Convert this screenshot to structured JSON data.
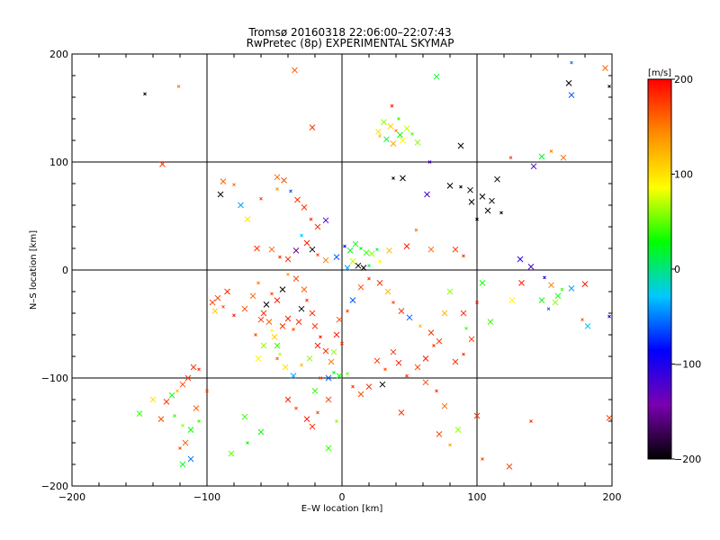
{
  "chart_data": {
    "type": "scatter",
    "title": "Tromsø 20160318 22:06:00–22:07:43",
    "subtitle": "RwPretec (8p) EXPERIMENTAL SKYMAP",
    "xlabel": "E–W location [km]",
    "ylabel": "N–S location [km]",
    "xlim": [
      -200,
      200
    ],
    "ylim": [
      -200,
      200
    ],
    "x_ticks": [
      "−200",
      "−100",
      "0",
      "100",
      "200"
    ],
    "y_ticks": [
      "−200",
      "−100",
      "0",
      "100",
      "200"
    ],
    "grid": "on",
    "marker": "x",
    "colorbar": {
      "label": "[m/s]",
      "range": [
        -200,
        200
      ],
      "ticks": [
        "200",
        "100",
        "0",
        "−100",
        "−200"
      ],
      "colormap": [
        "#000000",
        "#7a00b0",
        "#0000ff",
        "#00c8ff",
        "#00ff00",
        "#ffff00",
        "#ff8c00",
        "#ff0000"
      ]
    },
    "points": [
      [
        -146,
        163,
        -200
      ],
      [
        -133,
        98,
        180
      ],
      [
        -22,
        132,
        180
      ],
      [
        37,
        152,
        190
      ],
      [
        31,
        137,
        60
      ],
      [
        36,
        133,
        110
      ],
      [
        40,
        129,
        150
      ],
      [
        43,
        125,
        30
      ],
      [
        48,
        131,
        70
      ],
      [
        28,
        124,
        120
      ],
      [
        33,
        121,
        20
      ],
      [
        45,
        120,
        90
      ],
      [
        52,
        126,
        40
      ],
      [
        27,
        128,
        100
      ],
      [
        56,
        118,
        60
      ],
      [
        42,
        140,
        40
      ],
      [
        38,
        117,
        130
      ],
      [
        70,
        179,
        20
      ],
      [
        170,
        192,
        -50
      ],
      [
        168,
        173,
        -200
      ],
      [
        170,
        162,
        -60
      ],
      [
        198,
        170,
        -200
      ],
      [
        195,
        187,
        160
      ],
      [
        -35,
        185,
        160
      ],
      [
        -121,
        170,
        150
      ],
      [
        88,
        115,
        -200
      ],
      [
        80,
        78,
        -200
      ],
      [
        88,
        77,
        -200
      ],
      [
        95,
        74,
        -200
      ],
      [
        96,
        63,
        -200
      ],
      [
        100,
        47,
        -200
      ],
      [
        108,
        55,
        -200
      ],
      [
        111,
        64,
        -200
      ],
      [
        118,
        53,
        -200
      ],
      [
        104,
        68,
        -200
      ],
      [
        115,
        84,
        -200
      ],
      [
        65,
        100,
        -120
      ],
      [
        63,
        70,
        -120
      ],
      [
        45,
        85,
        -200
      ],
      [
        38,
        85,
        -200
      ],
      [
        -90,
        70,
        -200
      ],
      [
        -88,
        82,
        160
      ],
      [
        -80,
        79,
        160
      ],
      [
        -48,
        86,
        160
      ],
      [
        -43,
        83,
        170
      ],
      [
        -38,
        73,
        -60
      ],
      [
        -33,
        65,
        180
      ],
      [
        -28,
        58,
        180
      ],
      [
        -23,
        47,
        180
      ],
      [
        -18,
        40,
        180
      ],
      [
        -12,
        46,
        -120
      ],
      [
        -48,
        75,
        140
      ],
      [
        -70,
        47,
        100
      ],
      [
        -75,
        60,
        -40
      ],
      [
        -60,
        66,
        180
      ],
      [
        -63,
        20,
        180
      ],
      [
        -52,
        19,
        160
      ],
      [
        -46,
        12,
        180
      ],
      [
        -40,
        10,
        180
      ],
      [
        -34,
        18,
        -150
      ],
      [
        -30,
        32,
        -30
      ],
      [
        -26,
        25,
        190
      ],
      [
        -22,
        19,
        -200
      ],
      [
        -18,
        14,
        180
      ],
      [
        -12,
        9,
        150
      ],
      [
        -4,
        12,
        -60
      ],
      [
        2,
        22,
        -100
      ],
      [
        6,
        18,
        20
      ],
      [
        10,
        24,
        30
      ],
      [
        14,
        20,
        20
      ],
      [
        18,
        16,
        40
      ],
      [
        22,
        15,
        60
      ],
      [
        26,
        19,
        10
      ],
      [
        12,
        4,
        -200
      ],
      [
        16,
        2,
        -200
      ],
      [
        20,
        4,
        10
      ],
      [
        8,
        8,
        70
      ],
      [
        4,
        2,
        -40
      ],
      [
        28,
        8,
        90
      ],
      [
        35,
        18,
        120
      ],
      [
        48,
        22,
        190
      ],
      [
        55,
        37,
        150
      ],
      [
        66,
        19,
        160
      ],
      [
        84,
        19,
        180
      ],
      [
        90,
        13,
        180
      ],
      [
        140,
        3,
        -120
      ],
      [
        132,
        10,
        -100
      ],
      [
        150,
        -7,
        -90
      ],
      [
        133,
        -12,
        190
      ],
      [
        155,
        -14,
        150
      ],
      [
        163,
        -18,
        40
      ],
      [
        170,
        -17,
        -40
      ],
      [
        180,
        -13,
        190
      ],
      [
        198,
        -43,
        -90
      ],
      [
        160,
        -24,
        30
      ],
      [
        158,
        -30,
        60
      ],
      [
        153,
        -36,
        -60
      ],
      [
        148,
        -28,
        30
      ],
      [
        126,
        -28,
        90
      ],
      [
        178,
        -46,
        170
      ],
      [
        182,
        -52,
        -30
      ],
      [
        198,
        -137,
        170
      ],
      [
        140,
        -140,
        180
      ],
      [
        124,
        -182,
        170
      ],
      [
        148,
        105,
        20
      ],
      [
        155,
        110,
        150
      ],
      [
        164,
        104,
        160
      ],
      [
        142,
        96,
        -120
      ],
      [
        125,
        104,
        180
      ],
      [
        -92,
        -26,
        180
      ],
      [
        -85,
        -20,
        180
      ],
      [
        -88,
        -34,
        170
      ],
      [
        -94,
        -38,
        110
      ],
      [
        -96,
        -30,
        170
      ],
      [
        -80,
        -42,
        190
      ],
      [
        -72,
        -36,
        170
      ],
      [
        -66,
        -24,
        160
      ],
      [
        -62,
        -12,
        150
      ],
      [
        -58,
        -40,
        180
      ],
      [
        -54,
        -48,
        160
      ],
      [
        -52,
        -56,
        90
      ],
      [
        -50,
        -62,
        110
      ],
      [
        -48,
        -70,
        40
      ],
      [
        -46,
        -78,
        70
      ],
      [
        -44,
        -52,
        180
      ],
      [
        -40,
        -45,
        190
      ],
      [
        -36,
        -55,
        170
      ],
      [
        -32,
        -48,
        180
      ],
      [
        -30,
        -36,
        -200
      ],
      [
        -26,
        -28,
        180
      ],
      [
        -22,
        -40,
        180
      ],
      [
        -20,
        -52,
        180
      ],
      [
        -16,
        -62,
        190
      ],
      [
        -12,
        -75,
        180
      ],
      [
        -8,
        -85,
        150
      ],
      [
        -6,
        -95,
        20
      ],
      [
        -10,
        -100,
        -60
      ],
      [
        -2,
        -98,
        30
      ],
      [
        4,
        -96,
        50
      ],
      [
        -28,
        -18,
        160
      ],
      [
        -34,
        -8,
        170
      ],
      [
        -40,
        -4,
        140
      ],
      [
        -44,
        -18,
        -200
      ],
      [
        -48,
        -28,
        190
      ],
      [
        -52,
        -22,
        170
      ],
      [
        -56,
        -32,
        -200
      ],
      [
        -60,
        -46,
        180
      ],
      [
        -64,
        -60,
        170
      ],
      [
        -58,
        -70,
        60
      ],
      [
        -62,
        -82,
        90
      ],
      [
        -48,
        -82,
        160
      ],
      [
        -42,
        -90,
        100
      ],
      [
        -36,
        -98,
        -40
      ],
      [
        -30,
        -88,
        120
      ],
      [
        -24,
        -82,
        60
      ],
      [
        -18,
        -70,
        190
      ],
      [
        -16,
        -100,
        170
      ],
      [
        -20,
        -112,
        40
      ],
      [
        -110,
        -90,
        180
      ],
      [
        -106,
        -92,
        180
      ],
      [
        -114,
        -100,
        180
      ],
      [
        -118,
        -106,
        170
      ],
      [
        -122,
        -112,
        120
      ],
      [
        -126,
        -116,
        30
      ],
      [
        -130,
        -122,
        180
      ],
      [
        -124,
        -135,
        40
      ],
      [
        -140,
        -120,
        100
      ],
      [
        -150,
        -133,
        40
      ],
      [
        -118,
        -144,
        60
      ],
      [
        -112,
        -148,
        30
      ],
      [
        -116,
        -160,
        160
      ],
      [
        -120,
        -165,
        170
      ],
      [
        -112,
        -175,
        -50
      ],
      [
        -118,
        -180,
        20
      ],
      [
        -106,
        -140,
        40
      ],
      [
        -134,
        -138,
        170
      ],
      [
        -108,
        -128,
        160
      ],
      [
        -100,
        -112,
        170
      ],
      [
        -72,
        -136,
        40
      ],
      [
        -82,
        -170,
        50
      ],
      [
        -70,
        -160,
        30
      ],
      [
        -60,
        -150,
        30
      ],
      [
        -40,
        -120,
        190
      ],
      [
        -34,
        -128,
        170
      ],
      [
        -26,
        -138,
        190
      ],
      [
        -22,
        -145,
        180
      ],
      [
        -18,
        -132,
        170
      ],
      [
        -10,
        -120,
        170
      ],
      [
        -10,
        -165,
        40
      ],
      [
        -4,
        -140,
        60
      ],
      [
        30,
        -106,
        -200
      ],
      [
        26,
        -84,
        180
      ],
      [
        32,
        -92,
        170
      ],
      [
        38,
        -76,
        180
      ],
      [
        42,
        -86,
        190
      ],
      [
        48,
        -98,
        180
      ],
      [
        56,
        -90,
        170
      ],
      [
        62,
        -82,
        190
      ],
      [
        68,
        -70,
        180
      ],
      [
        72,
        -66,
        180
      ],
      [
        66,
        -58,
        180
      ],
      [
        58,
        -52,
        120
      ],
      [
        50,
        -44,
        -60
      ],
      [
        44,
        -38,
        180
      ],
      [
        38,
        -30,
        170
      ],
      [
        34,
        -20,
        120
      ],
      [
        28,
        -12,
        180
      ],
      [
        20,
        -8,
        180
      ],
      [
        14,
        -16,
        170
      ],
      [
        8,
        -28,
        -60
      ],
      [
        4,
        -38,
        170
      ],
      [
        -2,
        -46,
        170
      ],
      [
        -4,
        -60,
        190
      ],
      [
        0,
        -68,
        180
      ],
      [
        -6,
        -76,
        60
      ],
      [
        62,
        -104,
        170
      ],
      [
        70,
        -112,
        180
      ],
      [
        76,
        -126,
        160
      ],
      [
        72,
        -152,
        170
      ],
      [
        80,
        -162,
        130
      ],
      [
        86,
        -148,
        60
      ],
      [
        100,
        -135,
        180
      ],
      [
        104,
        -175,
        170
      ],
      [
        14,
        -115,
        170
      ],
      [
        20,
        -108,
        180
      ],
      [
        8,
        -108,
        180
      ],
      [
        44,
        -132,
        180
      ],
      [
        84,
        -85,
        180
      ],
      [
        90,
        -78,
        180
      ],
      [
        96,
        -64,
        180
      ],
      [
        90,
        -40,
        180
      ],
      [
        100,
        -30,
        190
      ],
      [
        110,
        -48,
        40
      ],
      [
        104,
        -12,
        30
      ],
      [
        92,
        -54,
        40
      ],
      [
        76,
        -40,
        120
      ],
      [
        80,
        -20,
        60
      ]
    ]
  }
}
